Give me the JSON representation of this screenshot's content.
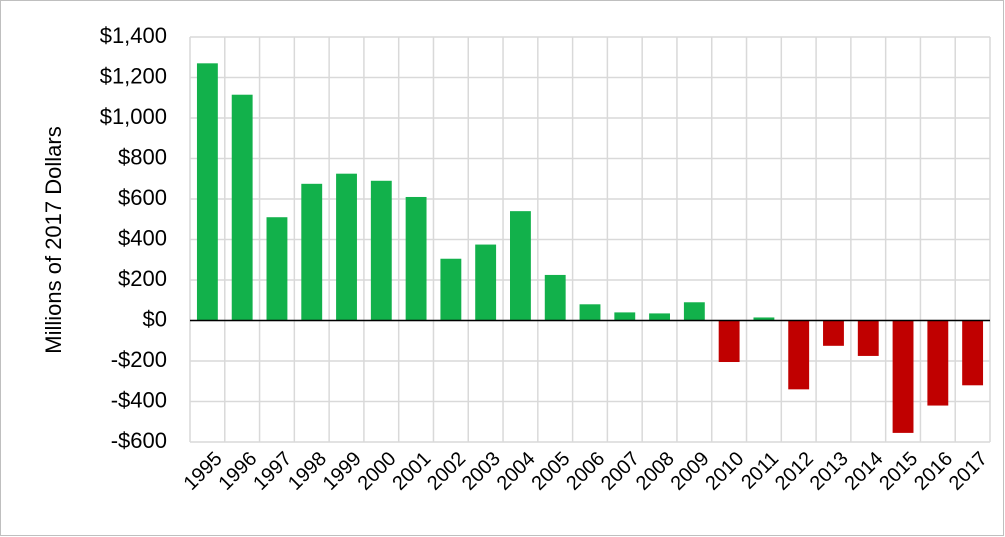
{
  "chart_data": {
    "type": "bar",
    "y_label": "Millions of 2017 Dollars",
    "categories": [
      "1995",
      "1996",
      "1997",
      "1998",
      "1999",
      "2000",
      "2001",
      "2002",
      "2003",
      "2004",
      "2005",
      "2006",
      "2007",
      "2008",
      "2009",
      "2010",
      "2011",
      "2012",
      "2013",
      "2014",
      "2015",
      "2016",
      "2017"
    ],
    "values": [
      1270,
      1115,
      510,
      675,
      725,
      690,
      610,
      305,
      375,
      540,
      225,
      80,
      40,
      35,
      90,
      -205,
      15,
      -340,
      -125,
      -175,
      -555,
      -420,
      -320
    ],
    "color": "#12b14b",
    "negative_color": "#c00000",
    "ylim": [
      -600,
      1400
    ],
    "yticks": [
      {
        "value": -600,
        "label": "-$600"
      },
      {
        "value": -400,
        "label": "-$400"
      },
      {
        "value": -200,
        "label": "-$200"
      },
      {
        "value": 0,
        "label": "$0"
      },
      {
        "value": 200,
        "label": "$200"
      },
      {
        "value": 400,
        "label": "$400"
      },
      {
        "value": 600,
        "label": "$600"
      },
      {
        "value": 800,
        "label": "$800"
      },
      {
        "value": 1000,
        "label": "$1,000"
      },
      {
        "value": 1200,
        "label": "$1,200"
      },
      {
        "value": 1400,
        "label": "$1,400"
      }
    ],
    "grid": true
  }
}
